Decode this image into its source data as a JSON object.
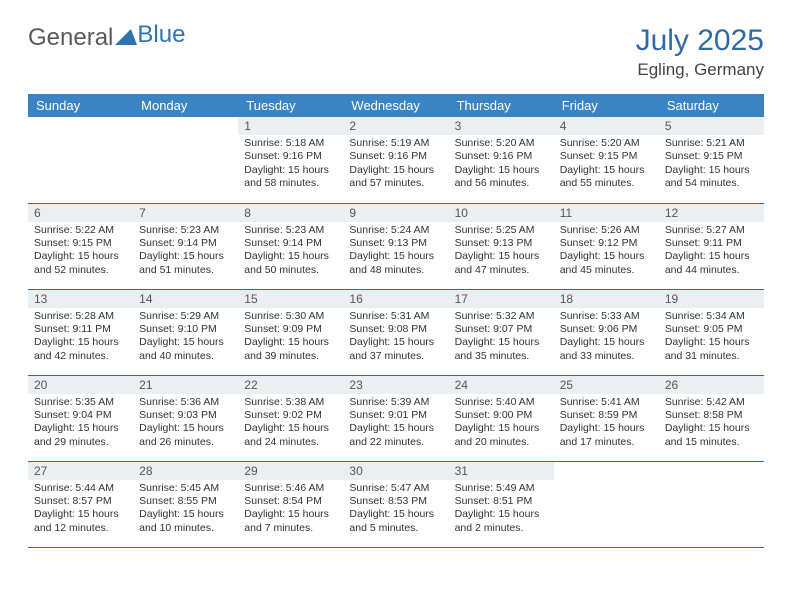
{
  "logo": {
    "part1": "General",
    "part2": "Blue"
  },
  "title": "July 2025",
  "location": "Egling, Germany",
  "columns": [
    "Sunday",
    "Monday",
    "Tuesday",
    "Wednesday",
    "Thursday",
    "Friday",
    "Saturday"
  ],
  "colors": {
    "header_bg": "#3b84c4",
    "header_text": "#ffffff",
    "title_color": "#2e6ca8",
    "daynum_bg": "#eceff1",
    "border": "#2e6ca8"
  },
  "weeks": [
    [
      null,
      null,
      {
        "n": "1",
        "sr": "5:18 AM",
        "ss": "9:16 PM",
        "dl": "15 hours and 58 minutes."
      },
      {
        "n": "2",
        "sr": "5:19 AM",
        "ss": "9:16 PM",
        "dl": "15 hours and 57 minutes."
      },
      {
        "n": "3",
        "sr": "5:20 AM",
        "ss": "9:16 PM",
        "dl": "15 hours and 56 minutes."
      },
      {
        "n": "4",
        "sr": "5:20 AM",
        "ss": "9:15 PM",
        "dl": "15 hours and 55 minutes."
      },
      {
        "n": "5",
        "sr": "5:21 AM",
        "ss": "9:15 PM",
        "dl": "15 hours and 54 minutes."
      }
    ],
    [
      {
        "n": "6",
        "sr": "5:22 AM",
        "ss": "9:15 PM",
        "dl": "15 hours and 52 minutes."
      },
      {
        "n": "7",
        "sr": "5:23 AM",
        "ss": "9:14 PM",
        "dl": "15 hours and 51 minutes."
      },
      {
        "n": "8",
        "sr": "5:23 AM",
        "ss": "9:14 PM",
        "dl": "15 hours and 50 minutes."
      },
      {
        "n": "9",
        "sr": "5:24 AM",
        "ss": "9:13 PM",
        "dl": "15 hours and 48 minutes."
      },
      {
        "n": "10",
        "sr": "5:25 AM",
        "ss": "9:13 PM",
        "dl": "15 hours and 47 minutes."
      },
      {
        "n": "11",
        "sr": "5:26 AM",
        "ss": "9:12 PM",
        "dl": "15 hours and 45 minutes."
      },
      {
        "n": "12",
        "sr": "5:27 AM",
        "ss": "9:11 PM",
        "dl": "15 hours and 44 minutes."
      }
    ],
    [
      {
        "n": "13",
        "sr": "5:28 AM",
        "ss": "9:11 PM",
        "dl": "15 hours and 42 minutes."
      },
      {
        "n": "14",
        "sr": "5:29 AM",
        "ss": "9:10 PM",
        "dl": "15 hours and 40 minutes."
      },
      {
        "n": "15",
        "sr": "5:30 AM",
        "ss": "9:09 PM",
        "dl": "15 hours and 39 minutes."
      },
      {
        "n": "16",
        "sr": "5:31 AM",
        "ss": "9:08 PM",
        "dl": "15 hours and 37 minutes."
      },
      {
        "n": "17",
        "sr": "5:32 AM",
        "ss": "9:07 PM",
        "dl": "15 hours and 35 minutes."
      },
      {
        "n": "18",
        "sr": "5:33 AM",
        "ss": "9:06 PM",
        "dl": "15 hours and 33 minutes."
      },
      {
        "n": "19",
        "sr": "5:34 AM",
        "ss": "9:05 PM",
        "dl": "15 hours and 31 minutes."
      }
    ],
    [
      {
        "n": "20",
        "sr": "5:35 AM",
        "ss": "9:04 PM",
        "dl": "15 hours and 29 minutes."
      },
      {
        "n": "21",
        "sr": "5:36 AM",
        "ss": "9:03 PM",
        "dl": "15 hours and 26 minutes."
      },
      {
        "n": "22",
        "sr": "5:38 AM",
        "ss": "9:02 PM",
        "dl": "15 hours and 24 minutes."
      },
      {
        "n": "23",
        "sr": "5:39 AM",
        "ss": "9:01 PM",
        "dl": "15 hours and 22 minutes."
      },
      {
        "n": "24",
        "sr": "5:40 AM",
        "ss": "9:00 PM",
        "dl": "15 hours and 20 minutes."
      },
      {
        "n": "25",
        "sr": "5:41 AM",
        "ss": "8:59 PM",
        "dl": "15 hours and 17 minutes."
      },
      {
        "n": "26",
        "sr": "5:42 AM",
        "ss": "8:58 PM",
        "dl": "15 hours and 15 minutes."
      }
    ],
    [
      {
        "n": "27",
        "sr": "5:44 AM",
        "ss": "8:57 PM",
        "dl": "15 hours and 12 minutes."
      },
      {
        "n": "28",
        "sr": "5:45 AM",
        "ss": "8:55 PM",
        "dl": "15 hours and 10 minutes."
      },
      {
        "n": "29",
        "sr": "5:46 AM",
        "ss": "8:54 PM",
        "dl": "15 hours and 7 minutes."
      },
      {
        "n": "30",
        "sr": "5:47 AM",
        "ss": "8:53 PM",
        "dl": "15 hours and 5 minutes."
      },
      {
        "n": "31",
        "sr": "5:49 AM",
        "ss": "8:51 PM",
        "dl": "15 hours and 2 minutes."
      },
      null,
      null
    ]
  ],
  "labels": {
    "sunrise": "Sunrise: ",
    "sunset": "Sunset: ",
    "daylight": "Daylight: "
  }
}
